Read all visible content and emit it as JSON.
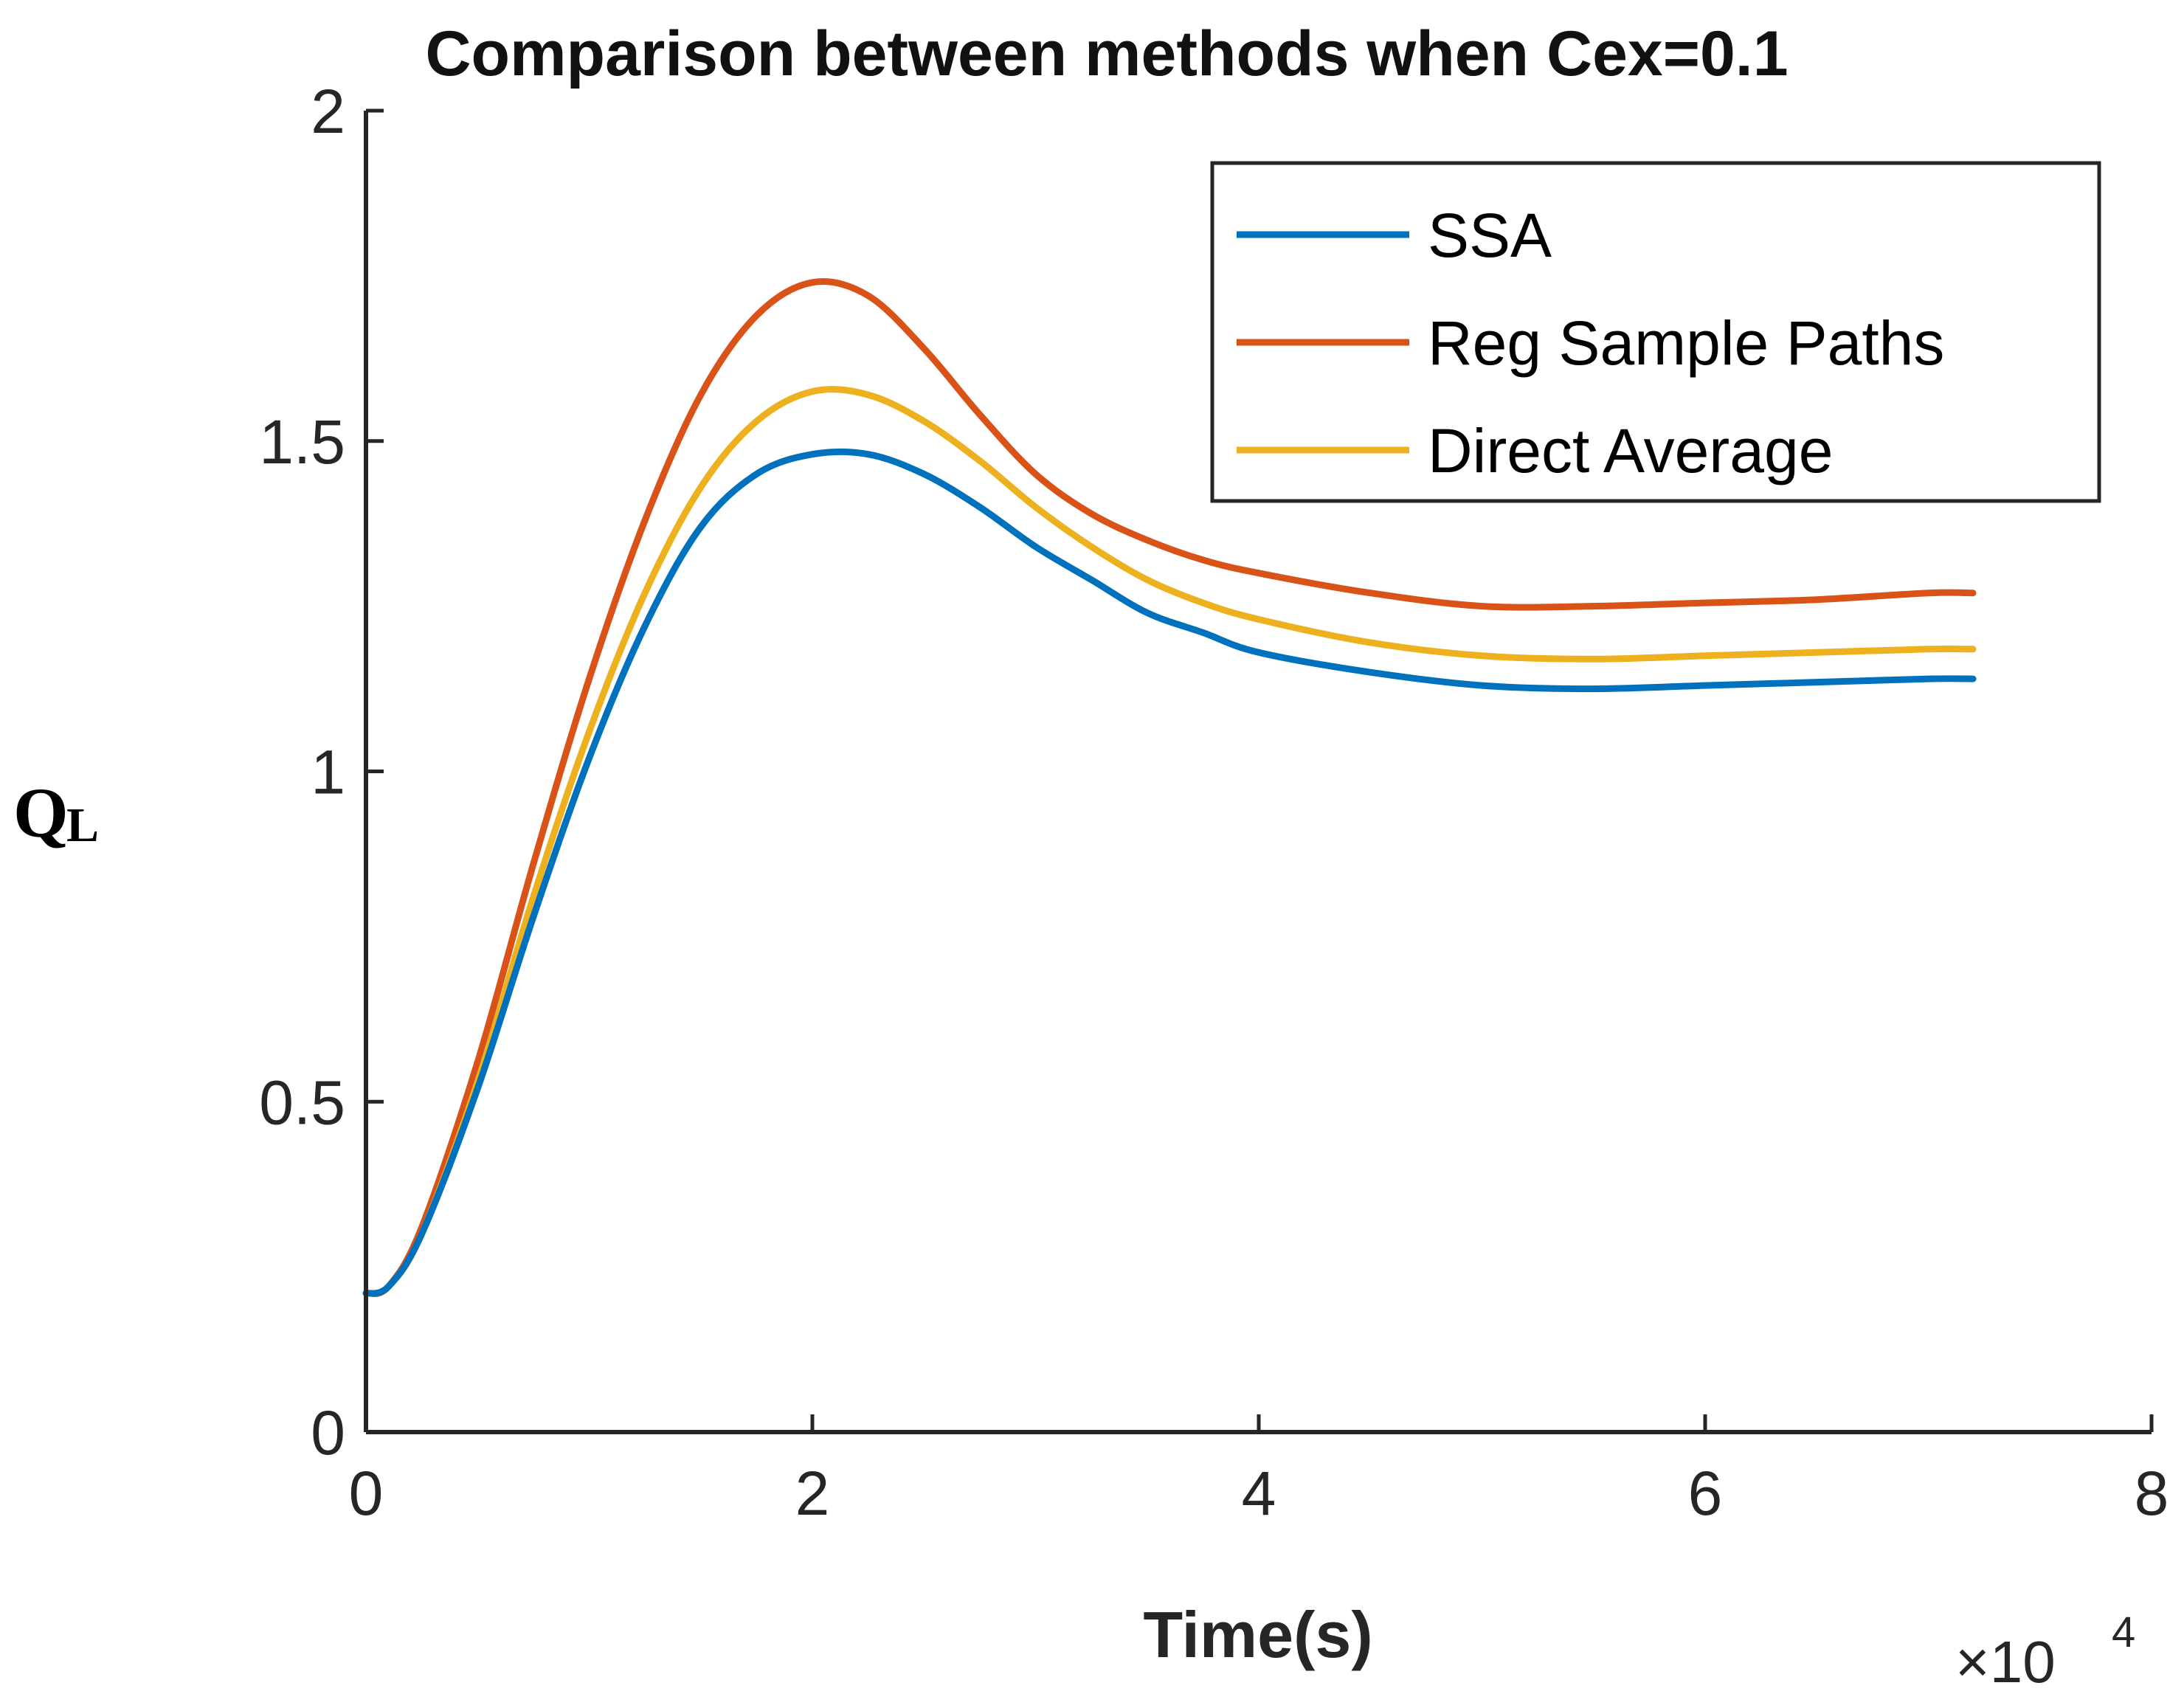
{
  "chart_data": {
    "type": "line",
    "title": "Comparison between methods when Cex=0.1",
    "xlabel": "Time(s)",
    "ylabel": "Q",
    "ylabel_subscript": "L",
    "x_multiplier": {
      "base": "×10",
      "exponent": "4"
    },
    "xlim": [
      0,
      8
    ],
    "ylim": [
      0,
      2
    ],
    "xticks": [
      0,
      2,
      4,
      6,
      8
    ],
    "xtick_labels": [
      "0",
      "2",
      "4",
      "6",
      "8"
    ],
    "yticks": [
      0,
      0.5,
      1,
      1.5,
      2
    ],
    "ytick_labels": [
      "0",
      "0.5",
      "1",
      "1.5",
      "2"
    ],
    "grid": false,
    "legend_position": "top-right",
    "x": [
      0,
      0.1,
      0.25,
      0.5,
      0.75,
      1.0,
      1.25,
      1.5,
      1.75,
      2.0,
      2.25,
      2.5,
      2.75,
      3.0,
      3.25,
      3.5,
      3.75,
      4.0,
      4.5,
      5.0,
      5.5,
      6.0,
      6.5,
      7.0,
      7.2
    ],
    "series": [
      {
        "name": "SSA",
        "color": "#0072BD",
        "values": [
          0.21,
          0.22,
          0.3,
          0.52,
          0.78,
          1.02,
          1.22,
          1.37,
          1.45,
          1.48,
          1.48,
          1.45,
          1.4,
          1.34,
          1.29,
          1.24,
          1.21,
          1.18,
          1.15,
          1.13,
          1.125,
          1.13,
          1.135,
          1.14,
          1.14
        ]
      },
      {
        "name": "Reg Sample Paths",
        "color": "#D95319",
        "values": [
          0.21,
          0.22,
          0.31,
          0.56,
          0.86,
          1.14,
          1.38,
          1.57,
          1.69,
          1.74,
          1.72,
          1.64,
          1.54,
          1.45,
          1.39,
          1.35,
          1.32,
          1.3,
          1.27,
          1.25,
          1.25,
          1.255,
          1.26,
          1.27,
          1.27
        ]
      },
      {
        "name": "Direct Average",
        "color": "#EDB120",
        "values": [
          0.21,
          0.22,
          0.3,
          0.53,
          0.81,
          1.06,
          1.27,
          1.43,
          1.53,
          1.575,
          1.57,
          1.53,
          1.47,
          1.4,
          1.34,
          1.29,
          1.255,
          1.23,
          1.195,
          1.175,
          1.17,
          1.175,
          1.18,
          1.185,
          1.185
        ]
      }
    ]
  }
}
